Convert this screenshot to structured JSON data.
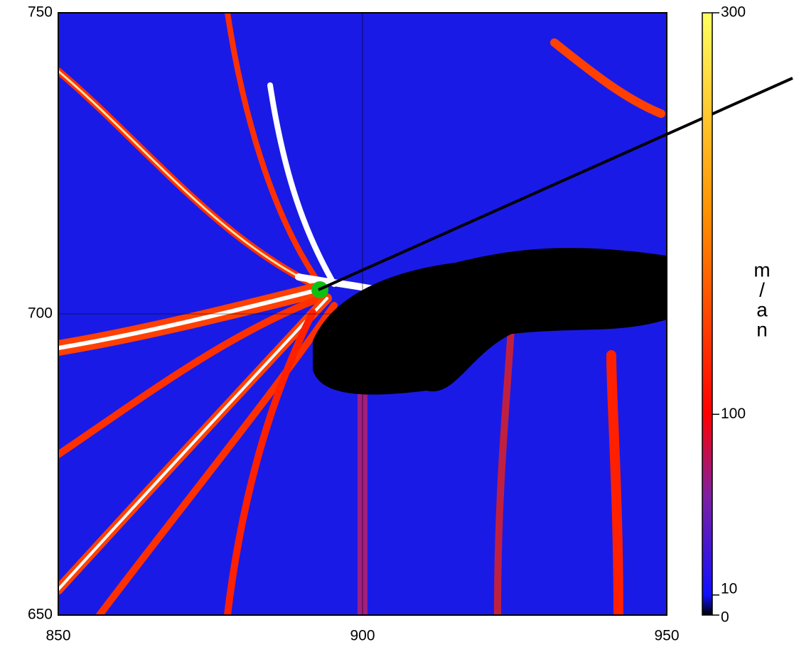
{
  "chart_data": {
    "type": "map",
    "xlim": [
      850,
      950
    ],
    "xticks": [
      850,
      900,
      950
    ],
    "ylim": [
      650,
      750
    ],
    "yticks": [
      650,
      700,
      750
    ],
    "colorbar": {
      "lim": [
        0,
        300
      ],
      "ticks": [
        0,
        10,
        100,
        300
      ],
      "label": [
        "m",
        "/",
        "a",
        "n"
      ],
      "colormap": [
        {
          "value": 0,
          "color": "#000000"
        },
        {
          "value": 10,
          "color": "#1010ff"
        },
        {
          "value": 60,
          "color": "#8020a0"
        },
        {
          "value": 100,
          "color": "#ff0000"
        },
        {
          "value": 200,
          "color": "#ff9000"
        },
        {
          "value": 300,
          "color": "#ffff60"
        }
      ]
    }
  }
}
